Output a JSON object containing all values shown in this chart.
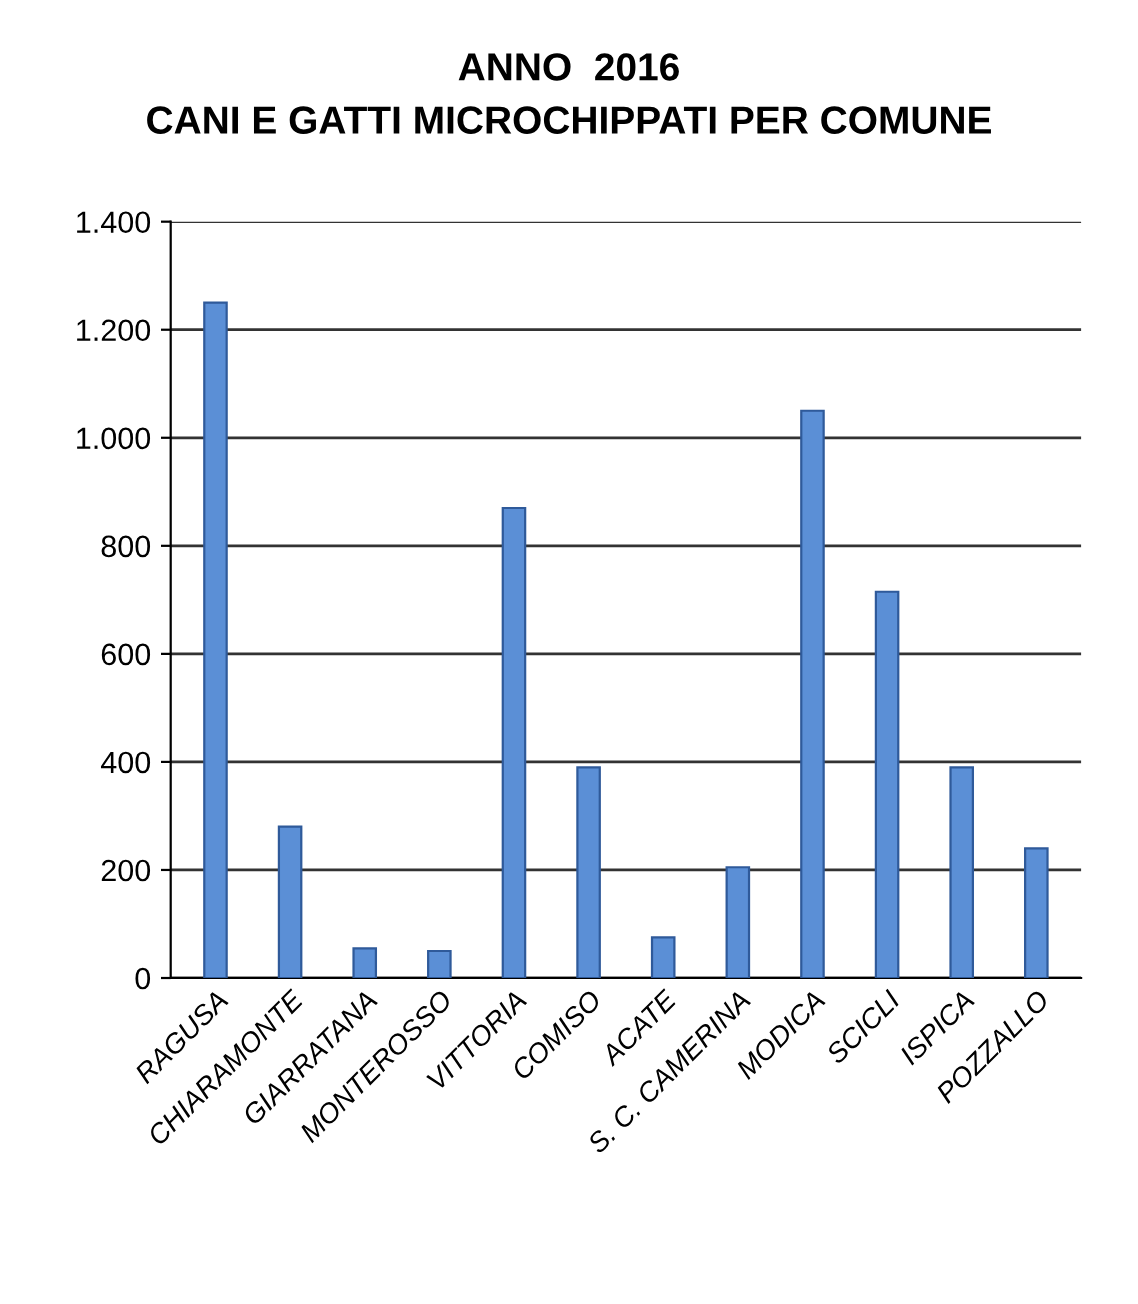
{
  "chart_data": {
    "type": "bar",
    "title": "ANNO  2016\nCANI E GATTI MICROCHIPPATI PER COMUNE",
    "categories": [
      "RAGUSA",
      "CHIARAMONTE",
      "GIARRATANA",
      "MONTEROSSO",
      "VITTORIA",
      "COMISO",
      "ACATE",
      "S. C. CAMERINA",
      "MODICA",
      "SCICLI",
      "ISPICA",
      "POZZALLO"
    ],
    "values": [
      1250,
      280,
      55,
      50,
      870,
      390,
      75,
      205,
      1050,
      715,
      390,
      240
    ],
    "color": "#5b8fd6",
    "ylim": [
      0,
      1400
    ],
    "yticks": [
      0,
      {
        "value": 200,
        "label": "200"
      },
      {
        "value": 400,
        "label": "400"
      },
      {
        "value": 600,
        "label": "600"
      },
      {
        "value": 800,
        "label": "800"
      },
      {
        "value": 1000,
        "label": "1.000"
      },
      {
        "value": 1200,
        "label": "1.200"
      },
      {
        "value": 1400,
        "label": "1.400"
      }
    ],
    "grid": "y",
    "legend": false
  }
}
